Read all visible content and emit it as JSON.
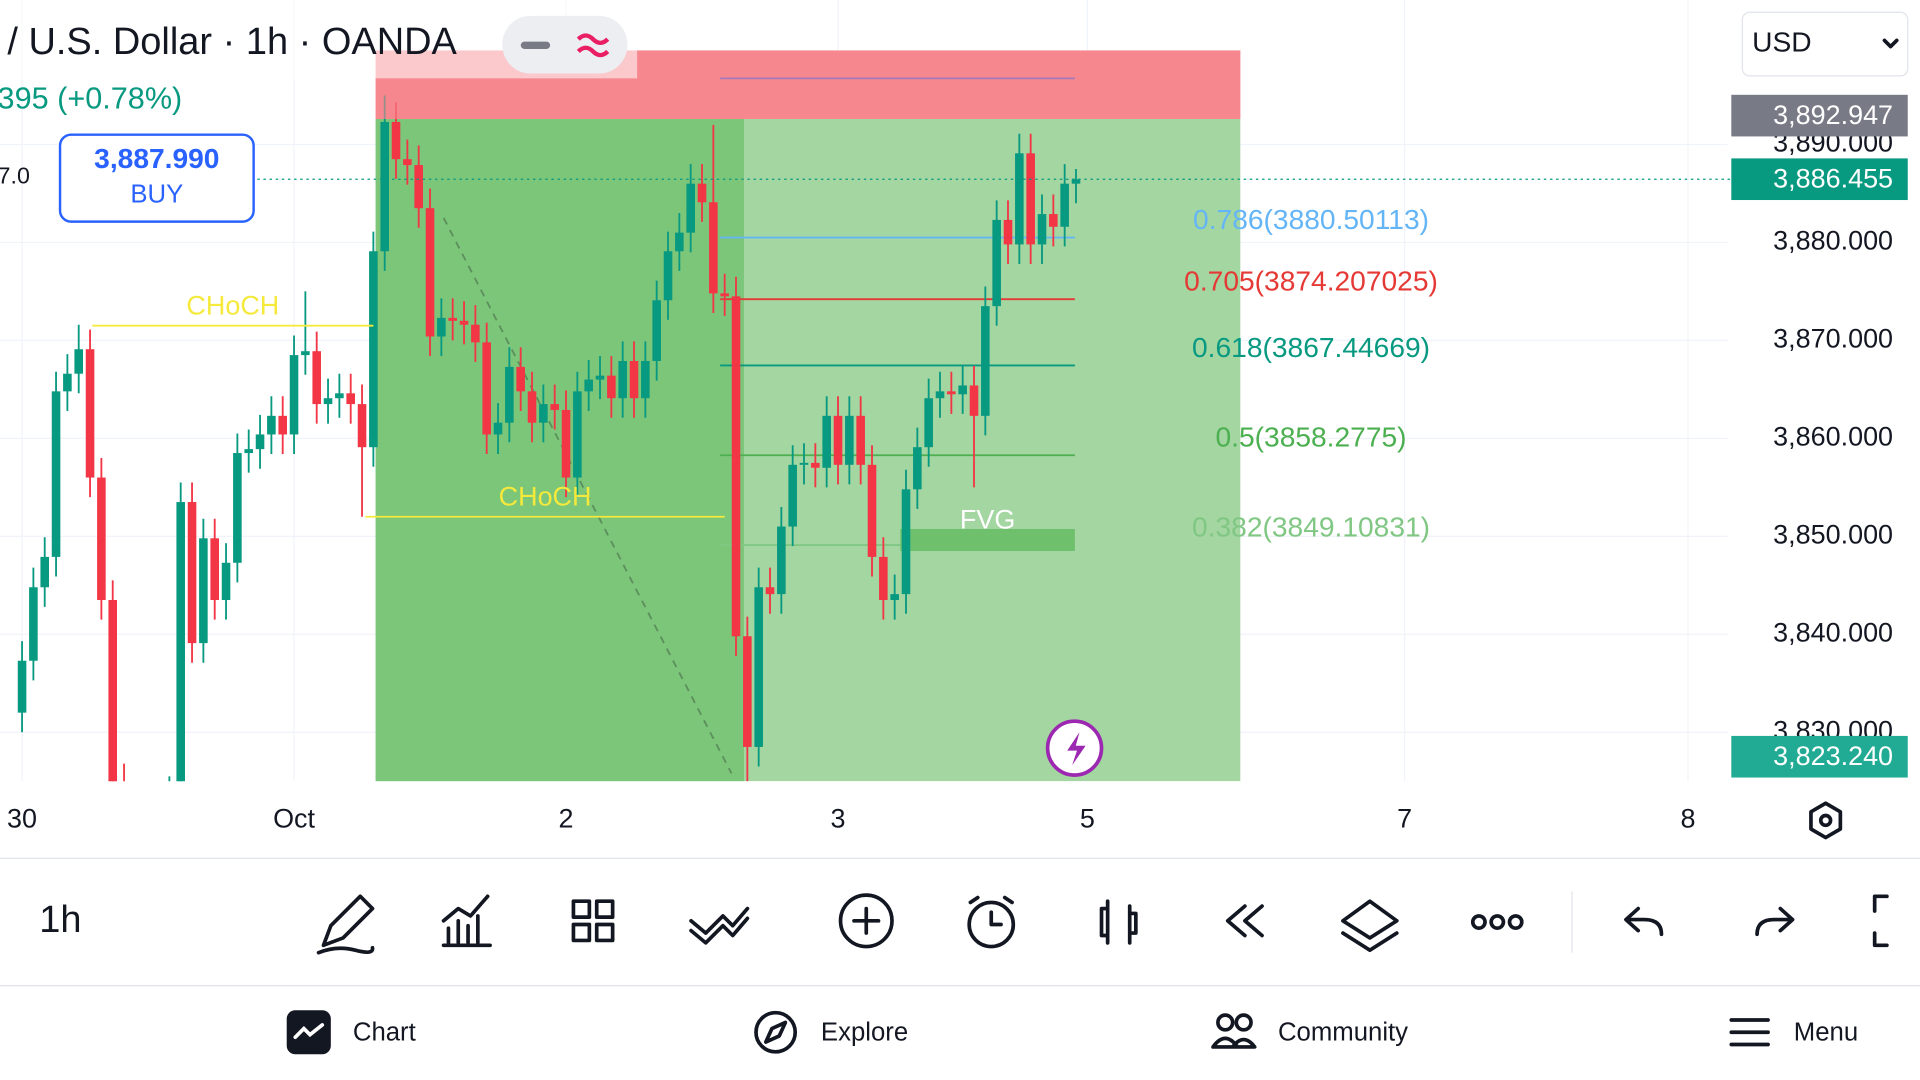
{
  "header": {
    "symbol": "/ U.S. Dollar · 1h · OANDA",
    "change": "395 (+0.78%)",
    "cut_price": "7.0",
    "buy_price": "3,887.990",
    "buy_label": "BUY",
    "currency": "USD"
  },
  "chart_data": {
    "type": "candlestick",
    "open": [
      3832.0,
      3837.3,
      3844.8,
      3847.9,
      3864.8,
      3866.6,
      3869.1,
      3856.0,
      3843.5,
      3824.8,
      3819.8,
      3817.3,
      3818.5,
      3821.0,
      3823.5,
      3853.5,
      3839.1,
      3849.8,
      3843.5,
      3847.3,
      3858.5,
      3858.9,
      3860.4,
      3862.3,
      3860.4,
      3868.5,
      3868.9,
      3863.5,
      3864.1,
      3864.6,
      3863.5,
      3859.1,
      3879.1,
      3892.3,
      3888.5,
      3887.9,
      3883.5,
      3870.4,
      3872.3,
      3872.0,
      3871.6,
      3869.8,
      3860.4,
      3861.6,
      3867.3,
      3864.8,
      3861.6,
      3863.5,
      3862.9,
      3856.0,
      3864.8,
      3866.0,
      3866.4,
      3864.1,
      3867.9,
      3864.1,
      3867.9,
      3874.1,
      3879.1,
      3881.0,
      3886.0,
      3884.1,
      3874.8,
      3874.5,
      3839.8,
      3828.5,
      3844.8,
      3844.1,
      3851.0,
      3857.3,
      3857.5,
      3857.0,
      3862.3,
      3857.3,
      3862.3,
      3857.3,
      3847.9,
      3843.5,
      3844.1,
      3854.8,
      3859.1,
      3864.1,
      3864.8,
      3864.5,
      3865.4,
      3862.3,
      3873.5,
      3882.3,
      3879.8,
      3889.1,
      3879.8,
      3882.9,
      3881.6,
      3886.0
    ],
    "high": [
      3839.3,
      3846.8,
      3849.9,
      3866.8,
      3868.6,
      3871.6,
      3871.1,
      3858.0,
      3845.5,
      3826.8,
      3821.8,
      3820.5,
      3823.0,
      3825.5,
      3855.5,
      3855.5,
      3851.8,
      3851.8,
      3849.3,
      3860.5,
      3860.9,
      3862.4,
      3864.3,
      3864.3,
      3870.5,
      3875.0,
      3870.9,
      3866.1,
      3866.6,
      3866.6,
      3865.5,
      3881.1,
      3895.0,
      3894.3,
      3890.5,
      3889.9,
      3885.5,
      3874.3,
      3874.3,
      3874.0,
      3873.6,
      3871.8,
      3863.6,
      3869.3,
      3869.3,
      3866.8,
      3865.5,
      3865.5,
      3864.9,
      3866.8,
      3868.0,
      3868.4,
      3868.4,
      3869.9,
      3869.9,
      3869.9,
      3876.1,
      3881.1,
      3883.0,
      3888.0,
      3888.0,
      3892.0,
      3876.8,
      3876.5,
      3841.8,
      3846.8,
      3846.8,
      3853.0,
      3859.3,
      3859.5,
      3859.5,
      3864.3,
      3864.3,
      3864.3,
      3864.3,
      3859.3,
      3849.9,
      3846.1,
      3856.8,
      3861.1,
      3866.1,
      3866.8,
      3866.8,
      3867.4,
      3867.4,
      3875.5,
      3884.3,
      3884.3,
      3891.1,
      3891.1,
      3884.9,
      3884.9,
      3888.0,
      3887.5
    ],
    "low": [
      3830.0,
      3835.3,
      3842.8,
      3845.9,
      3862.8,
      3864.6,
      3854.0,
      3841.5,
      3822.8,
      3817.8,
      3815.3,
      3815.3,
      3816.5,
      3819.0,
      3821.5,
      3837.1,
      3837.1,
      3841.5,
      3841.5,
      3845.3,
      3856.5,
      3856.9,
      3858.4,
      3858.4,
      3858.4,
      3866.5,
      3861.5,
      3861.5,
      3862.1,
      3861.5,
      3852.0,
      3857.1,
      3877.1,
      3886.5,
      3885.9,
      3881.5,
      3868.4,
      3868.4,
      3870.0,
      3869.6,
      3867.8,
      3858.4,
      3858.4,
      3859.6,
      3862.8,
      3859.6,
      3859.6,
      3860.9,
      3854.0,
      3854.0,
      3862.8,
      3864.0,
      3862.1,
      3862.1,
      3862.1,
      3862.1,
      3865.9,
      3872.1,
      3877.1,
      3879.0,
      3882.1,
      3872.8,
      3872.5,
      3837.8,
      3825.0,
      3826.5,
      3842.1,
      3842.1,
      3849.0,
      3855.3,
      3855.0,
      3855.0,
      3855.3,
      3855.3,
      3855.3,
      3845.9,
      3841.5,
      3841.5,
      3842.1,
      3852.8,
      3857.1,
      3862.1,
      3862.5,
      3862.5,
      3855.0,
      3860.3,
      3871.5,
      3877.8,
      3877.8,
      3877.8,
      3877.8,
      3879.6,
      3879.6,
      3884.0
    ],
    "close": [
      3837.3,
      3844.8,
      3847.9,
      3864.8,
      3866.6,
      3869.1,
      3856.0,
      3843.5,
      3824.8,
      3819.8,
      3817.3,
      3818.5,
      3821.0,
      3823.5,
      3853.5,
      3839.1,
      3849.8,
      3843.5,
      3847.3,
      3858.5,
      3858.9,
      3860.4,
      3862.3,
      3860.4,
      3868.5,
      3868.9,
      3863.5,
      3864.1,
      3864.6,
      3863.5,
      3859.1,
      3879.1,
      3892.3,
      3888.5,
      3887.9,
      3883.5,
      3870.4,
      3872.3,
      3872.0,
      3871.6,
      3869.8,
      3860.4,
      3861.6,
      3867.3,
      3864.8,
      3861.6,
      3863.5,
      3862.9,
      3856.0,
      3864.8,
      3866.0,
      3866.4,
      3864.1,
      3867.9,
      3864.1,
      3867.9,
      3874.1,
      3879.1,
      3881.0,
      3886.0,
      3884.1,
      3874.8,
      3874.5,
      3839.8,
      3828.5,
      3844.8,
      3844.1,
      3851.0,
      3857.3,
      3857.5,
      3857.0,
      3862.3,
      3857.3,
      3862.3,
      3857.3,
      3847.9,
      3843.5,
      3844.1,
      3854.8,
      3859.1,
      3864.1,
      3864.8,
      3864.5,
      3865.4,
      3862.3,
      3873.5,
      3882.3,
      3879.8,
      3889.1,
      3879.8,
      3882.9,
      3881.6,
      3886.0,
      3886.455
    ],
    "up_color": "#089981",
    "down_color": "#f23645",
    "xlim": [
      -2,
      150.5
    ],
    "xticks": [
      {
        "value": 0,
        "label": "30"
      },
      {
        "value": 24,
        "label": "Oct"
      },
      {
        "value": 48,
        "label": "2"
      },
      {
        "value": 72,
        "label": "3"
      },
      {
        "value": 94,
        "label": "5"
      },
      {
        "value": 122,
        "label": "7"
      },
      {
        "value": 147,
        "label": "8"
      }
    ],
    "ylim": [
      3825,
      3904.75
    ],
    "yticks": [
      {
        "value": 3830,
        "label": "3,830.000"
      },
      {
        "value": 3840,
        "label": "3,840.000"
      },
      {
        "value": 3850,
        "label": "3,850.000"
      },
      {
        "value": 3860,
        "label": "3,860.000"
      },
      {
        "value": 3870,
        "label": "3,870.000"
      },
      {
        "value": 3880,
        "label": "3,880.000"
      },
      {
        "value": 3890,
        "label": "3,890.000"
      }
    ],
    "grid": true,
    "zones": [
      {
        "x": [
          31.2,
          107.5
        ],
        "y": [
          3892.6,
          3899.6
        ],
        "color": "#f7878f"
      },
      {
        "x": [
          31.2,
          107.5
        ],
        "y": [
          3825,
          3892.6
        ],
        "color": "#a3d6a1"
      },
      {
        "x": [
          31.2,
          63.7
        ],
        "y": [
          3825,
          3892.6
        ],
        "color": "#7cc67a"
      }
    ],
    "structure_lines": [
      {
        "label": "CHoCH",
        "price": 3871.5,
        "x": [
          6.2,
          31.0
        ]
      },
      {
        "label": "CHoCH",
        "price": 3852.0,
        "x": [
          30.3,
          62.0
        ]
      }
    ],
    "fvg": {
      "label": "FVG",
      "x": [
        77.5,
        92.9
      ],
      "y": [
        3848.5,
        3850.75
      ],
      "color": "#6fc06c"
    },
    "trend_line": {
      "x": [
        37.2,
        62.6
      ],
      "y": [
        3882.5,
        3825.8
      ]
    },
    "fib": {
      "x": [
        61.6,
        92.9
      ],
      "top": {
        "price": 3896.75,
        "color": "#2962ff"
      },
      "levels": [
        {
          "label": "0.786(3880.50113)",
          "price": 3880.50113,
          "color": "#64b5f6"
        },
        {
          "label": "0.705(3874.207025)",
          "price": 3874.207025,
          "color": "#e53935"
        },
        {
          "label": "0.618(3867.44669)",
          "price": 3867.44669,
          "color": "#089981"
        },
        {
          "label": "0.5(3858.2775)",
          "price": 3858.2775,
          "color": "#4caf50"
        },
        {
          "label": "0.382(3849.10831)",
          "price": 3849.10831,
          "color": "#81c784"
        }
      ]
    },
    "price_tags": [
      {
        "value": 3892.947,
        "label": "3,892.947",
        "color": "#787b86"
      },
      {
        "value": 3886.455,
        "label": "3,886.455",
        "color": "#089981"
      },
      {
        "value": 3823.24,
        "label": "3,823.240",
        "color": "#22ab94"
      }
    ]
  },
  "toolbar": {
    "timeframe": "1h"
  },
  "nav": [
    "Chart",
    "Explore",
    "Community",
    "Menu"
  ]
}
